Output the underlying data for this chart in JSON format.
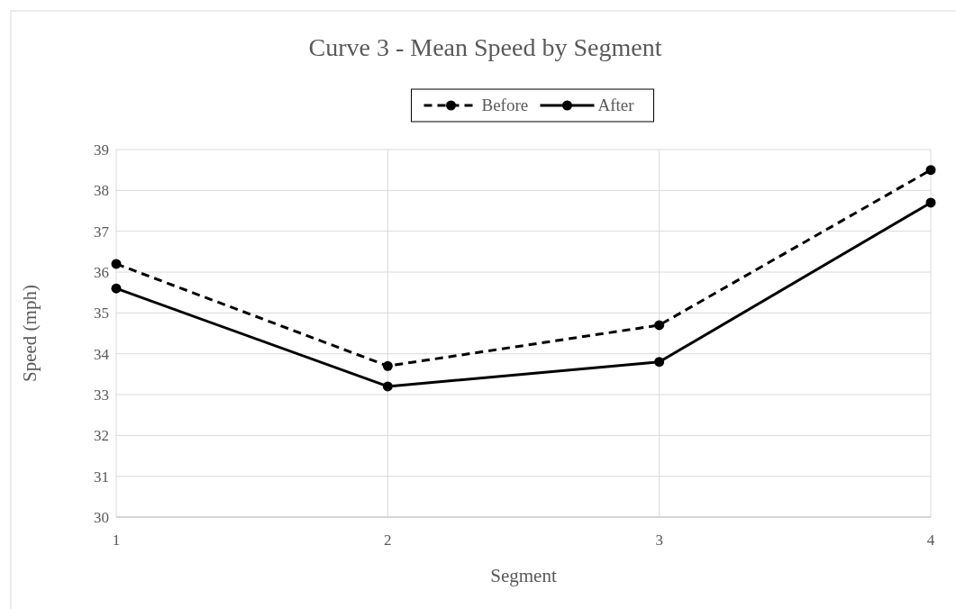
{
  "chart_data": {
    "type": "line",
    "title": "Curve 3 - Mean Speed by Segment",
    "xlabel": "Segment",
    "ylabel": "Speed (mph)",
    "x": [
      1,
      2,
      3,
      4
    ],
    "xlim": [
      1,
      4
    ],
    "xticks": [
      1,
      2,
      3,
      4
    ],
    "ylim": [
      30,
      39
    ],
    "yticks": [
      30,
      31,
      32,
      33,
      34,
      35,
      36,
      37,
      38,
      39
    ],
    "grid": true,
    "legend": "top",
    "marker": "circle",
    "series": [
      {
        "name": "Before",
        "color": "#000000",
        "line_style": "dashed",
        "values": [
          36.2,
          33.7,
          34.7,
          38.5
        ]
      },
      {
        "name": "After",
        "color": "#000000",
        "line_style": "solid",
        "values": [
          35.6,
          33.2,
          33.8,
          37.7
        ]
      }
    ]
  }
}
